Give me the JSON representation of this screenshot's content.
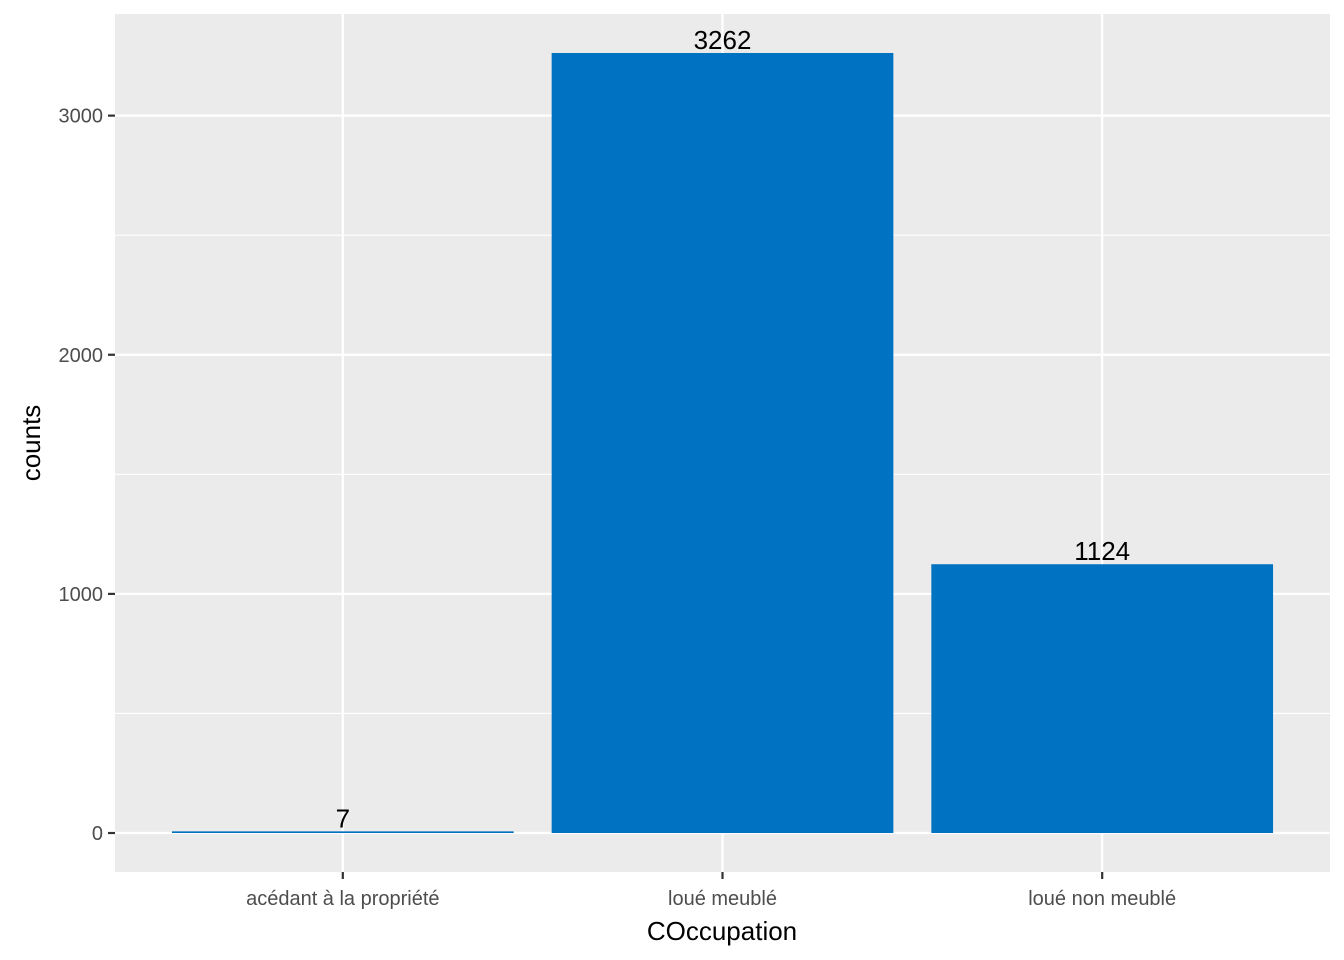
{
  "chart_data": {
    "type": "bar",
    "title": "",
    "xlabel": "COccupation",
    "ylabel": "counts",
    "categories": [
      "acédant à la propriété",
      "loué meublé",
      "loué non meublé"
    ],
    "values": [
      7,
      3262,
      1124
    ],
    "data_labels": [
      "7",
      "3262",
      "1124"
    ],
    "ylim": [
      -163,
      3425
    ],
    "y_ticks": [
      0,
      1000,
      2000,
      3000
    ],
    "y_tick_labels": [
      "0",
      "1000",
      "2000",
      "3000"
    ],
    "y_minor_ticks": [
      500,
      1500,
      2500
    ],
    "grid": true,
    "legend": "none",
    "colors": {
      "bar": "#0072C2",
      "panel_background": "#EBEBEB",
      "grid": "#FFFFFF",
      "tick_text": "#4D4D4D",
      "title_text": "#000000"
    }
  }
}
